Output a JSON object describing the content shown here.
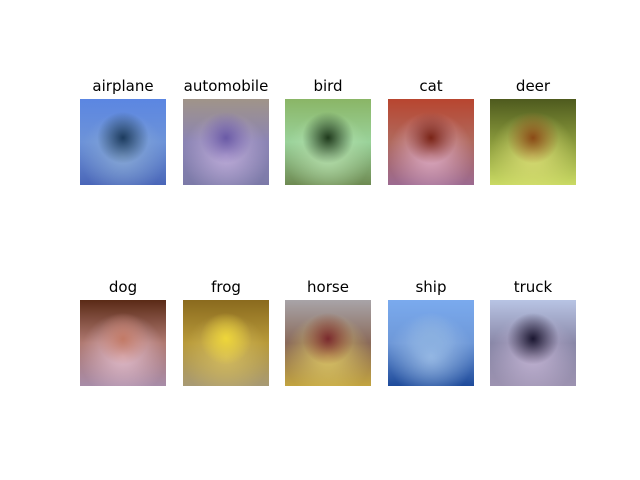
{
  "figure": {
    "panels": [
      {
        "label": "airplane",
        "colors": {
          "top": "#5b86e2",
          "mid": "#6d93d8",
          "bottom": "#4a66b8",
          "center": "#1c3b5e",
          "glow": "#8fb0d8"
        }
      },
      {
        "label": "automobile",
        "colors": {
          "top": "#a09488",
          "mid": "#8b84b4",
          "bottom": "#7c7aa8",
          "center": "#6a5aa6",
          "glow": "#c8b4e0"
        }
      },
      {
        "label": "bird",
        "colors": {
          "top": "#8ab566",
          "mid": "#9ad29a",
          "bottom": "#6e8a52",
          "center": "#1f3a1c",
          "glow": "#bde6b4"
        }
      },
      {
        "label": "cat",
        "colors": {
          "top": "#b8452f",
          "mid": "#b06a5e",
          "bottom": "#9c6a90",
          "center": "#7a2416",
          "glow": "#e6b6d0"
        }
      },
      {
        "label": "deer",
        "colors": {
          "top": "#4e5a1e",
          "mid": "#8a9a3c",
          "bottom": "#cada64",
          "center": "#8a4a16",
          "glow": "#e0e27a"
        }
      },
      {
        "label": "dog",
        "colors": {
          "top": "#5a2a16",
          "mid": "#b07a72",
          "bottom": "#a88ca8",
          "center": "#c27a66",
          "glow": "#e8c4d4"
        }
      },
      {
        "label": "frog",
        "colors": {
          "top": "#8a6a1e",
          "mid": "#b89a3a",
          "bottom": "#a89a74",
          "center": "#eed63a",
          "glow": "#d8c060"
        }
      },
      {
        "label": "horse",
        "colors": {
          "top": "#a8a4a8",
          "mid": "#8a6a5a",
          "bottom": "#c2a440",
          "center": "#7a2a2e",
          "glow": "#e2ce6a"
        }
      },
      {
        "label": "ship",
        "colors": {
          "top": "#7aaaee",
          "mid": "#6e98d8",
          "bottom": "#1e4a9a",
          "center": "#8ab0e0",
          "glow": "#a4c4ea"
        }
      },
      {
        "label": "truck",
        "colors": {
          "top": "#b8c4e4",
          "mid": "#8a88a8",
          "bottom": "#9c92b0",
          "center": "#1a1630",
          "glow": "#c8b8d8"
        }
      }
    ]
  }
}
